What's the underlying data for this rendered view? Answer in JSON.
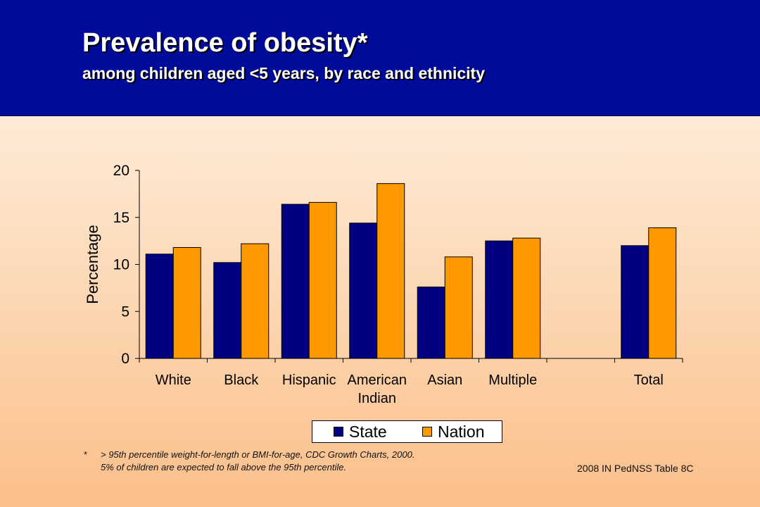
{
  "header": {
    "title": "Prevalence of obesity*",
    "subtitle": "among children aged <5 years, by race and ethnicity"
  },
  "colors": {
    "header_bg": "#000c99",
    "state": "#000080",
    "nation": "#ff9900"
  },
  "chart_data": {
    "type": "bar",
    "categories": [
      "White",
      "Black",
      "Hispanic",
      "American Indian",
      "Asian",
      "Multiple",
      "",
      "Total"
    ],
    "category_lines": [
      [
        "White"
      ],
      [
        "Black"
      ],
      [
        "Hispanic"
      ],
      [
        "American",
        "Indian"
      ],
      [
        "Asian"
      ],
      [
        "Multiple"
      ],
      [],
      [
        "Total"
      ]
    ],
    "series": [
      {
        "name": "State",
        "values": [
          11.1,
          10.2,
          16.4,
          14.4,
          7.6,
          12.5,
          null,
          12.0
        ]
      },
      {
        "name": "Nation",
        "values": [
          11.8,
          12.2,
          16.6,
          18.6,
          10.8,
          12.8,
          null,
          13.9
        ]
      }
    ],
    "ylabel": "Percentage",
    "ylim": [
      0,
      20
    ],
    "yticks": [
      0,
      5,
      10,
      15,
      20
    ],
    "grid": false,
    "legend_position": "bottom"
  },
  "legend": {
    "state_label": "State",
    "nation_label": "Nation"
  },
  "footnote": {
    "marker": "*",
    "line1": "> 95th percentile weight-for-length or BMI-for-age, CDC Growth Charts, 2000.",
    "line2": "5% of children are expected to fall above the 95th percentile."
  },
  "source": "2008 IN PedNSS Table 8C"
}
